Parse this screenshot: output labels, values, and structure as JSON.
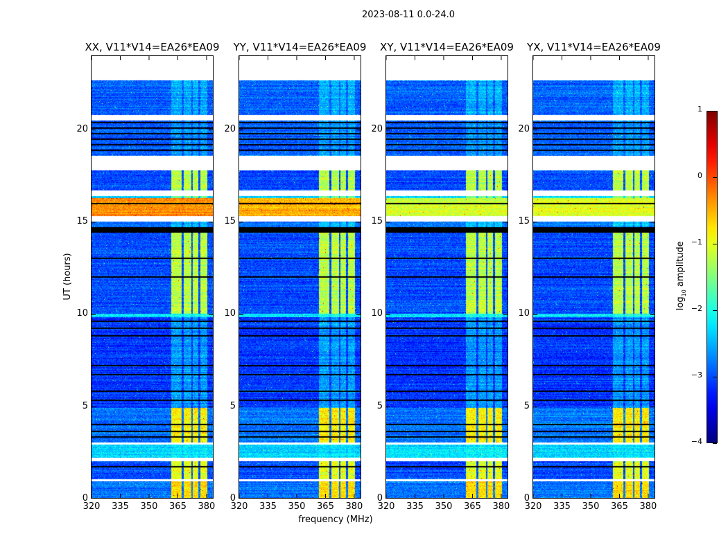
{
  "chart_data": {
    "type": "heatmap",
    "title": "2023-08-11 0.0-24.0",
    "xlabel": "frequency (MHz)",
    "ylabel": "UT (hours)",
    "xlim": [
      320,
      384
    ],
    "ylim": [
      0,
      24
    ],
    "xticks": [
      "320",
      "335",
      "350",
      "365",
      "380"
    ],
    "xtick_values": [
      320,
      335,
      350,
      365,
      380
    ],
    "yticks": [
      "0",
      "5",
      "10",
      "15",
      "20"
    ],
    "ytick_values": [
      0,
      5,
      10,
      15,
      20
    ],
    "colorbar": {
      "label": "log10 amplitude",
      "label_main": "log",
      "label_sub": "10",
      "label_rest": " amplitude",
      "range": [
        -4,
        1
      ],
      "ticks": [
        "1",
        "0",
        "−1",
        "−2",
        "−3",
        "−4"
      ],
      "tick_values": [
        1,
        0,
        -1,
        -2,
        -3,
        -4
      ],
      "colormap": "jet"
    },
    "panels": [
      {
        "title": "XX, V11*V14=EA26*EA09",
        "strong_band_level": -0.3
      },
      {
        "title": "YY, V11*V14=EA26*EA09",
        "strong_band_level": -0.5
      },
      {
        "title": "XY, V11*V14=EA26*EA09",
        "strong_band_level": -1.1
      },
      {
        "title": "YX, V11*V14=EA26*EA09",
        "strong_band_level": -1.0
      }
    ],
    "rfi_channels_mhz": [
      [
        362,
        367.5
      ],
      [
        368.5,
        372.5
      ],
      [
        373.5,
        376.5
      ],
      [
        377.5,
        381
      ]
    ],
    "time_bands": [
      {
        "ut": [
          0.0,
          0.9
        ],
        "base": -2.8,
        "rfi": -0.7
      },
      {
        "ut": [
          0.9,
          1.0
        ],
        "flagged": true
      },
      {
        "ut": [
          1.0,
          2.0
        ],
        "base": -3.0,
        "rfi": -1.0
      },
      {
        "ut": [
          2.0,
          2.2
        ],
        "flagged": true
      },
      {
        "ut": [
          2.2,
          2.9
        ],
        "base": -2.3,
        "rfi": -2.2
      },
      {
        "ut": [
          2.9,
          3.0
        ],
        "flagged": true
      },
      {
        "ut": [
          3.0,
          4.9
        ],
        "base": -2.8,
        "rfi": -0.8
      },
      {
        "ut": [
          4.9,
          9.8
        ],
        "base": -3.1,
        "rfi": -2.6
      },
      {
        "ut": [
          9.8,
          10.0
        ],
        "base": -2.2,
        "rfi": -2.0
      },
      {
        "ut": [
          10.0,
          14.4
        ],
        "base": -3.0,
        "rfi": -1.2
      },
      {
        "ut": [
          14.4,
          14.7
        ],
        "zero": true
      },
      {
        "ut": [
          14.7,
          15.0
        ],
        "base": -2.8,
        "rfi": -2.4
      },
      {
        "ut": [
          15.0,
          15.3
        ],
        "flagged": true
      },
      {
        "ut": [
          15.3,
          16.3
        ],
        "base": "strong",
        "rfi": "strong"
      },
      {
        "ut": [
          16.3,
          16.4
        ],
        "base": -2.3,
        "rfi": -1.5
      },
      {
        "ut": [
          16.4,
          16.7
        ],
        "flagged": true
      },
      {
        "ut": [
          16.7,
          17.8
        ],
        "base": -3.0,
        "rfi": -1.2
      },
      {
        "ut": [
          17.8,
          18.6
        ],
        "flagged": true
      },
      {
        "ut": [
          18.6,
          20.5
        ],
        "base": -2.9,
        "rfi": -2.6
      },
      {
        "ut": [
          20.5,
          20.8
        ],
        "flagged": true
      },
      {
        "ut": [
          20.8,
          22.7
        ],
        "base": -2.9,
        "rfi": -2.5
      },
      {
        "ut": [
          22.7,
          24.0
        ],
        "flagged": true
      }
    ],
    "zero_lines_ut": [
      1.7,
      3.3,
      3.6,
      4.0,
      5.3,
      5.8,
      6.7,
      7.2,
      8.8,
      9.2,
      9.6,
      12.0,
      13.0,
      16.0,
      18.9,
      19.2,
      19.5,
      19.8,
      20.1,
      20.4
    ]
  }
}
